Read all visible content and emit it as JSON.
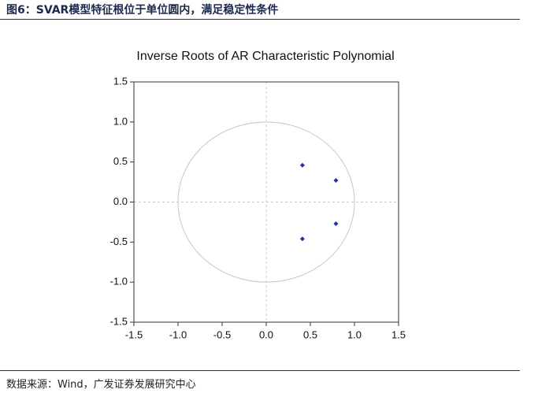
{
  "header": {
    "caption": "图6：SVAR模型特征根位于单位圆内，满足稳定性条件"
  },
  "footer": {
    "source": "数据来源：Wind，广发证券发展研究中心"
  },
  "chart_data": {
    "type": "scatter",
    "title": "Inverse Roots of AR Characteristic Polynomial",
    "x": [
      0.41,
      0.79,
      0.79,
      0.41
    ],
    "values": [
      0.46,
      0.27,
      -0.27,
      -0.46
    ],
    "color": "#2233aa",
    "xlim": [
      -1.5,
      1.5
    ],
    "ylim": [
      -1.5,
      1.5
    ],
    "xticks": [
      -1.5,
      {
        "value": -1,
        "label": "-1.0"
      },
      -0.5,
      {
        "value": 0,
        "label": "0.0"
      },
      0.5,
      {
        "value": 1,
        "label": "1.0"
      },
      1.5
    ],
    "yticks": [
      -1.5,
      {
        "value": -1,
        "label": "-1.0"
      },
      -0.5,
      {
        "value": 0,
        "label": "0.0"
      },
      0.5,
      {
        "value": 1,
        "label": "1.0"
      },
      1.5
    ]
  }
}
